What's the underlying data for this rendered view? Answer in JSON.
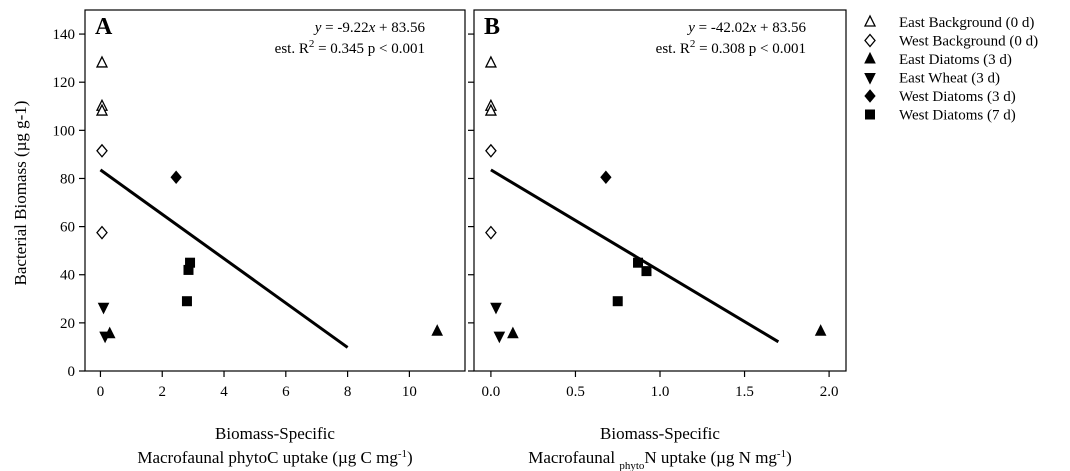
{
  "chart_data": {
    "type": "scatter",
    "shared_ylabel": "Bacterial Biomass (µg g-1)",
    "legend": {
      "placement": "right",
      "entries": [
        {
          "label": "East Background (0 d)",
          "marker": "triangle-up-open"
        },
        {
          "label": "West Background (0 d)",
          "marker": "diamond-open"
        },
        {
          "label": "East Diatoms (3 d)",
          "marker": "triangle-up-filled"
        },
        {
          "label": "East Wheat (3 d)",
          "marker": "triangle-down-filled"
        },
        {
          "label": "West Diatoms (3 d)",
          "marker": "diamond-filled"
        },
        {
          "label": "West Diatoms (7 d)",
          "marker": "square-filled"
        }
      ]
    },
    "panels": [
      {
        "id": "A",
        "letter": "A",
        "xlabel_line1": "Biomass-Specific",
        "xlabel_line2_parts": [
          {
            "text": "Macrofaunal phytoC uptake (µg C mg",
            "style": "normal"
          },
          {
            "text": "-1",
            "style": "sup"
          },
          {
            "text": ")",
            "style": "normal"
          }
        ],
        "ylabel": "Bacterial Biomass (µg g-1)",
        "equation_parts": [
          {
            "text": "y",
            "style": "italic"
          },
          {
            "text": " = -9.22",
            "style": "normal"
          },
          {
            "text": "x",
            "style": "italic"
          },
          {
            "text": " + 83.56",
            "style": "normal"
          }
        ],
        "stats_parts": [
          {
            "text": "est. R",
            "style": "normal"
          },
          {
            "text": "2",
            "style": "sup"
          },
          {
            "text": " = 0.345 p < 0.001",
            "style": "normal"
          }
        ],
        "xlim": [
          -0.5,
          11.8
        ],
        "ylim": [
          0,
          150
        ],
        "xticks": [
          0,
          2,
          4,
          6,
          8,
          10
        ],
        "xtick_labels": [
          "0",
          "2",
          "4",
          "6",
          "8",
          "10"
        ],
        "yticks": [
          0,
          20,
          40,
          60,
          80,
          100,
          120,
          140
        ],
        "ytick_labels": [
          "0",
          "20",
          "40",
          "60",
          "80",
          "100",
          "120",
          "140"
        ],
        "regression": {
          "slope": -9.22,
          "intercept": 83.56,
          "x_range": [
            0,
            8
          ]
        },
        "series": [
          {
            "name": "East Background (0 d)",
            "marker": "triangle-up-open",
            "points": [
              [
                0.05,
                128
              ],
              [
                0.05,
                110
              ],
              [
                0.05,
                108
              ]
            ]
          },
          {
            "name": "West Background (0 d)",
            "marker": "diamond-open",
            "points": [
              [
                0.05,
                91.5
              ],
              [
                0.05,
                57.5
              ]
            ]
          },
          {
            "name": "East Diatoms (3 d)",
            "marker": "triangle-up-filled",
            "points": [
              [
                0.3,
                15.5
              ],
              [
                10.9,
                16.5
              ]
            ]
          },
          {
            "name": "East Wheat (3 d)",
            "marker": "triangle-down-filled",
            "points": [
              [
                0.1,
                26.5
              ],
              [
                0.15,
                14.5
              ]
            ]
          },
          {
            "name": "West Diatoms (3 d)",
            "marker": "diamond-filled",
            "points": [
              [
                2.45,
                80.5
              ]
            ]
          },
          {
            "name": "West Diatoms (7 d)",
            "marker": "square-filled",
            "points": [
              [
                2.8,
                29
              ],
              [
                2.85,
                42
              ],
              [
                2.9,
                45
              ]
            ]
          }
        ]
      },
      {
        "id": "B",
        "letter": "B",
        "xlabel_line1": "Biomass-Specific",
        "xlabel_line2_parts": [
          {
            "text": "Macrofaunal ",
            "style": "normal"
          },
          {
            "text": "phyto",
            "style": "sub"
          },
          {
            "text": "N uptake (µg N mg",
            "style": "normal"
          },
          {
            "text": "-1",
            "style": "sup"
          },
          {
            "text": ")",
            "style": "normal"
          }
        ],
        "ylabel": "",
        "equation_parts": [
          {
            "text": "y",
            "style": "italic"
          },
          {
            "text": " = -42.02",
            "style": "normal"
          },
          {
            "text": "x",
            "style": "italic"
          },
          {
            "text": " + 83.56",
            "style": "normal"
          }
        ],
        "stats_parts": [
          {
            "text": "est. R",
            "style": "normal"
          },
          {
            "text": "2",
            "style": "sup"
          },
          {
            "text": " = 0.308 p < 0.001",
            "style": "normal"
          }
        ],
        "xlim": [
          -0.1,
          2.1
        ],
        "ylim": [
          0,
          150
        ],
        "xticks": [
          0,
          0.5,
          1.0,
          1.5,
          2.0
        ],
        "xtick_labels": [
          "0.0",
          "0.5",
          "1.0",
          "1.5",
          "2.0"
        ],
        "yticks": [
          0,
          20,
          40,
          60,
          80,
          100,
          120,
          140
        ],
        "ytick_labels": [],
        "regression": {
          "slope": -42.02,
          "intercept": 83.56,
          "x_range": [
            0,
            1.7
          ]
        },
        "series": [
          {
            "name": "East Background (0 d)",
            "marker": "triangle-up-open",
            "points": [
              [
                0.0,
                128
              ],
              [
                0.0,
                110
              ],
              [
                0.0,
                108
              ]
            ]
          },
          {
            "name": "West Background (0 d)",
            "marker": "diamond-open",
            "points": [
              [
                0.0,
                91.5
              ],
              [
                0.0,
                57.5
              ]
            ]
          },
          {
            "name": "East Diatoms (3 d)",
            "marker": "triangle-up-filled",
            "points": [
              [
                0.13,
                15.5
              ],
              [
                1.95,
                16.5
              ]
            ]
          },
          {
            "name": "East Wheat (3 d)",
            "marker": "triangle-down-filled",
            "points": [
              [
                0.03,
                26.5
              ],
              [
                0.05,
                14.5
              ]
            ]
          },
          {
            "name": "West Diatoms (3 d)",
            "marker": "diamond-filled",
            "points": [
              [
                0.68,
                80.5
              ]
            ]
          },
          {
            "name": "West Diatoms (7 d)",
            "marker": "square-filled",
            "points": [
              [
                0.75,
                29
              ],
              [
                0.87,
                45
              ],
              [
                0.92,
                41.5
              ]
            ]
          }
        ]
      }
    ]
  }
}
